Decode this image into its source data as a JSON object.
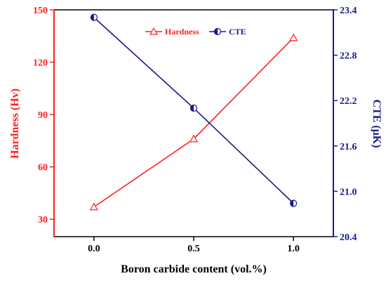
{
  "chart_data": {
    "type": "line",
    "x": [
      0.0,
      0.5,
      1.0
    ],
    "xlim": [
      -0.2,
      1.2
    ],
    "xticks": [
      "0.0",
      "0.5",
      "1.0"
    ],
    "xlabel": "Boron carbide content (vol.%)",
    "ylabel_left": "Hardness (Hv)",
    "ylim_left": [
      20,
      150
    ],
    "yticks_left": [
      "30",
      "60",
      "90",
      "120",
      "150"
    ],
    "ylabel_right": "CTE (μK)",
    "ylim_right": [
      20.4,
      23.4
    ],
    "yticks_right": [
      "20.4",
      "21.0",
      "21.6",
      "22.2",
      "22.8",
      "23.4"
    ],
    "series": [
      {
        "name": "Hardness",
        "axis": "left",
        "color": "#ff2020",
        "marker": "triangle",
        "values": [
          37,
          76,
          134
        ]
      },
      {
        "name": "CTE",
        "axis": "right",
        "color": "#1a1a8c",
        "marker": "circle",
        "values": [
          23.3,
          22.1,
          20.84
        ]
      }
    ],
    "legend": "top-center",
    "grid": false
  }
}
